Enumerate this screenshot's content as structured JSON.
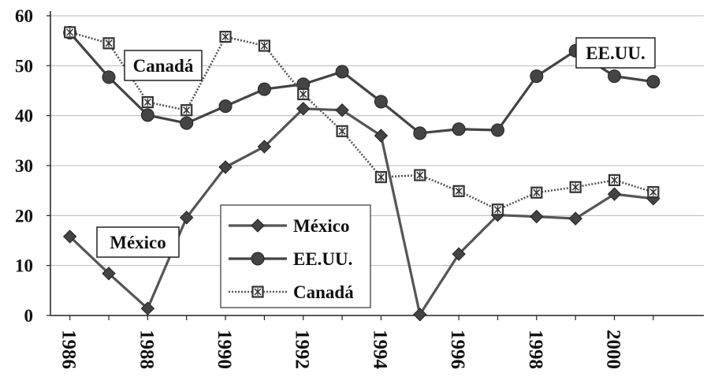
{
  "chart_data": {
    "type": "line",
    "x": [
      1986,
      1987,
      1988,
      1989,
      1990,
      1991,
      1992,
      1993,
      1994,
      1995,
      1996,
      1997,
      1998,
      1999,
      2000,
      2001
    ],
    "x_tick_labels": [
      "1986",
      "1988",
      "1990",
      "1992",
      "1994",
      "1996",
      "1998",
      "2000"
    ],
    "y_tick_labels": [
      "0",
      "10",
      "20",
      "30",
      "40",
      "50",
      "60"
    ],
    "ylim": [
      0,
      60
    ],
    "grid": true,
    "legend_position": "bottom-center",
    "series": [
      {
        "name": "México",
        "marker": "diamond",
        "values": [
          15.8,
          8.4,
          1.4,
          19.6,
          29.7,
          33.8,
          41.4,
          41.1,
          36.0,
          0.2,
          12.3,
          20.1,
          19.8,
          19.4,
          24.3,
          23.4
        ]
      },
      {
        "name": "EE.UU.",
        "marker": "circle",
        "values": [
          56.6,
          47.7,
          40.1,
          38.5,
          41.9,
          45.3,
          46.3,
          48.8,
          42.8,
          36.5,
          37.3,
          37.1,
          47.9,
          53.0,
          47.9,
          46.8
        ]
      },
      {
        "name": "Canadá",
        "marker": "square-x",
        "values": [
          56.7,
          54.5,
          42.7,
          41.1,
          55.8,
          54.0,
          44.3,
          36.9,
          27.7,
          28.1,
          24.9,
          21.2,
          24.6,
          25.7,
          27.1,
          24.7
        ]
      }
    ],
    "annotations": [
      {
        "text": "Canadá"
      },
      {
        "text": "EE.UU."
      },
      {
        "text": "México"
      }
    ]
  }
}
